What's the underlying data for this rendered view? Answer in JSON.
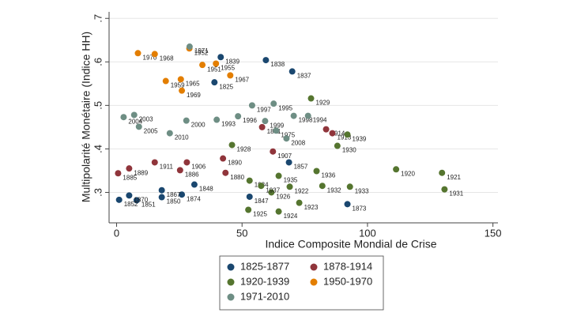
{
  "chart_data": {
    "type": "scatter",
    "x_label": "Indice Composite Mondial de Crise",
    "y_label": "Multipolarité Monétaire (Indice HH)",
    "xlim": [
      -3,
      152
    ],
    "ylim": [
      0.23,
      0.715
    ],
    "xticks": [
      0,
      50,
      100,
      150
    ],
    "yticks": [
      {
        "value": 0.3,
        "label": ".3"
      },
      {
        "value": 0.4,
        "label": ".4"
      },
      {
        "value": 0.5,
        "label": ".5"
      },
      {
        "value": 0.6,
        "label": ".6"
      },
      {
        "value": 0.7,
        "label": ".7"
      }
    ],
    "grid": true,
    "legend": "bottom",
    "series": [
      {
        "name": "1825-1877",
        "color": "#1a476f",
        "x": [
          70,
          59.5,
          39,
          68.7,
          92,
          53,
          18,
          8,
          1,
          5,
          31,
          26,
          18,
          41.5
        ],
        "values": [
          0.578,
          0.604,
          0.553,
          0.369,
          0.273,
          0.29,
          0.289,
          0.282,
          0.283,
          0.293,
          0.318,
          0.295,
          0.305,
          0.611
        ],
        "labels": [
          "1837",
          "1838",
          "1825",
          "1857",
          "1873",
          "1847",
          "1850",
          "1851",
          "1852",
          "1870",
          "1848",
          "1874",
          "1867",
          "1839"
        ]
      },
      {
        "name": "1878-1914",
        "color": "#90353b",
        "x": [
          83.5,
          86,
          58,
          62.3,
          43.4,
          28,
          25.3,
          15.2,
          42.4,
          5,
          0.6
        ],
        "values": [
          0.445,
          0.436,
          0.45,
          0.394,
          0.345,
          0.369,
          0.351,
          0.369,
          0.378,
          0.355,
          0.344
        ],
        "labels": [
          "1914",
          "1913",
          "1891",
          "1907",
          "1880",
          "1906",
          "1886",
          "1911",
          "1890",
          "1889",
          "1885"
        ]
      },
      {
        "name": "1920-1939",
        "color": "#55752f",
        "x": [
          77.5,
          92,
          88,
          79.7,
          111.4,
          129.7,
          130.7,
          93,
          82,
          69,
          72.8,
          64.6,
          52.5,
          61.7,
          64.6,
          53,
          57.6,
          46
        ],
        "values": [
          0.516,
          0.433,
          0.407,
          0.349,
          0.353,
          0.345,
          0.307,
          0.313,
          0.315,
          0.313,
          0.276,
          0.256,
          0.26,
          0.3,
          0.338,
          0.327,
          0.315,
          0.409
        ],
        "labels": [
          "1929",
          "1939",
          "1930",
          "1936",
          "1920",
          "1921",
          "1931",
          "1933",
          "1932",
          "1922",
          "1923",
          "1924",
          "1925",
          "1926",
          "1935",
          "1934",
          "1937",
          "1928"
        ]
      },
      {
        "name": "1950-1970",
        "color": "#e37e00",
        "x": [
          45.3,
          19.6,
          25.6,
          26,
          34.2,
          8.5,
          15.2,
          39.6,
          29
        ],
        "values": [
          0.569,
          0.556,
          0.56,
          0.534,
          0.593,
          0.62,
          0.618,
          0.596,
          0.631
        ],
        "labels": [
          "1967",
          "1959",
          "1965",
          "1969",
          "1951",
          "1970",
          "1968",
          "1955",
          "1952"
        ]
      },
      {
        "name": "1971-2010",
        "color": "#6e8e84",
        "x": [
          29.1,
          54,
          62.6,
          70.6,
          76.3,
          59.2,
          48.4,
          63.6,
          67.7,
          2.8,
          7,
          8.9,
          27.8,
          39.9,
          21.2
        ],
        "values": [
          0.635,
          0.5,
          0.504,
          0.476,
          0.476,
          0.464,
          0.475,
          0.442,
          0.424,
          0.473,
          0.478,
          0.451,
          0.465,
          0.467,
          0.436
        ],
        "labels": [
          "1971",
          "1997",
          "1995",
          "1998",
          "1994",
          "1999",
          "1996",
          "1975",
          "2008",
          "2004",
          "2003",
          "2005",
          "2000",
          "1993",
          "2010"
        ]
      }
    ]
  }
}
